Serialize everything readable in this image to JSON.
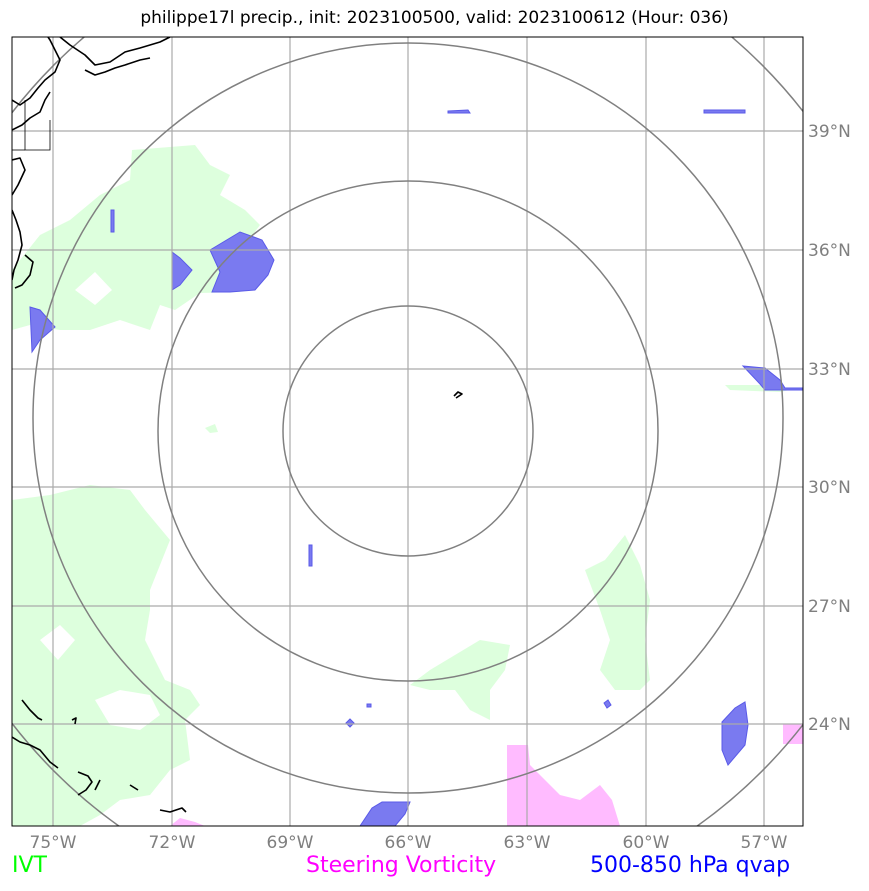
{
  "title": "philippe17l precip., init: 2023100500, valid: 2023100612 (Hour: 036)",
  "map": {
    "lon_ticks": [
      "75°W",
      "72°W",
      "69°W",
      "66°W",
      "63°W",
      "60°W",
      "57°W"
    ],
    "lat_ticks": [
      "39°N",
      "36°N",
      "33°N",
      "30°N",
      "27°N",
      "24°N"
    ],
    "gridline_color": "#aaaaaa",
    "range_ring_color": "#808080",
    "coastline_color": "#000000"
  },
  "legend": {
    "ivt": {
      "label": "IVT",
      "color": "#00ff00",
      "fill": "#ddffdd"
    },
    "vorticity": {
      "label": "Steering Vorticity",
      "color": "#ff00ff",
      "fill": "#ffbbff"
    },
    "qvap": {
      "label": "500-850 hPa qvap",
      "color": "#0000ff",
      "fill": "#7a7af0"
    }
  }
}
